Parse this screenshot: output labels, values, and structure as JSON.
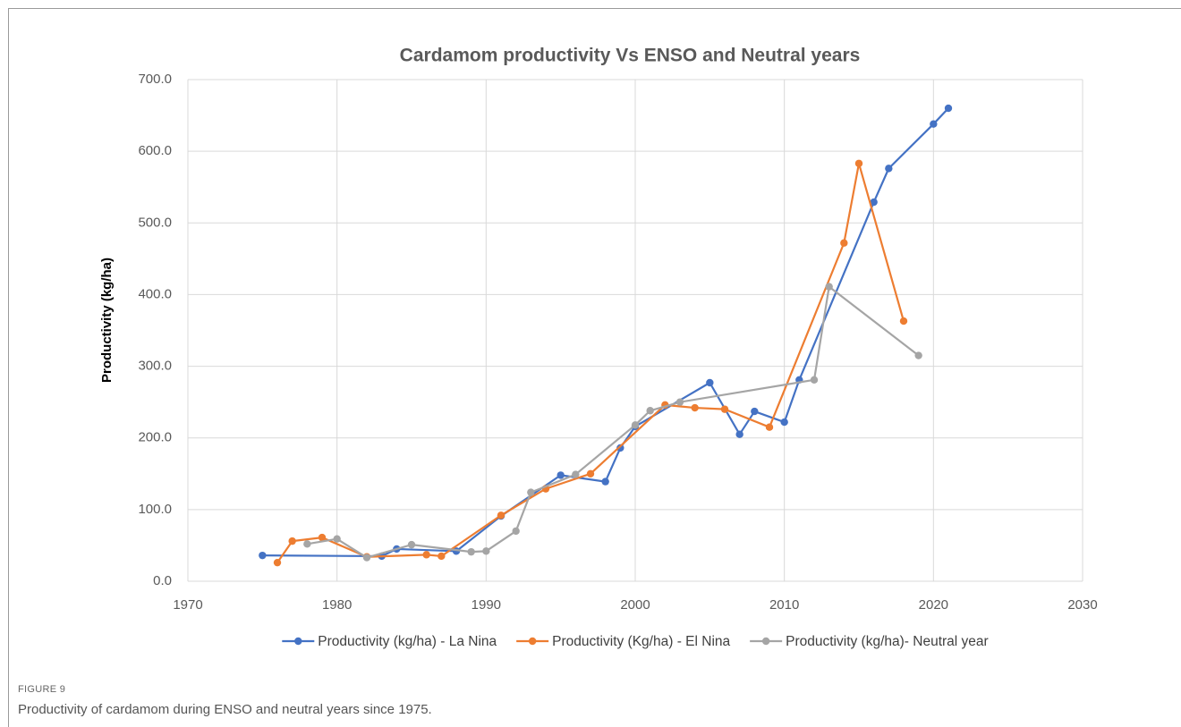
{
  "chart_data": {
    "type": "line",
    "title": "Cardamom productivity Vs ENSO and Neutral years",
    "y_label": "Productivity (kg/ha)",
    "xlim": [
      1970,
      2030
    ],
    "xticks": [
      1970,
      1980,
      1990,
      2000,
      2010,
      2020,
      2030
    ],
    "ylim": [
      0,
      700
    ],
    "yticks": [
      {
        "value": 0,
        "label": "0.0"
      },
      {
        "value": 100,
        "label": "100.0"
      },
      {
        "value": 200,
        "label": "200.0"
      },
      {
        "value": 300,
        "label": "300.0"
      },
      {
        "value": 400,
        "label": "400.0"
      },
      {
        "value": 500,
        "label": "500.0"
      },
      {
        "value": 600,
        "label": "600.0"
      },
      {
        "value": 700,
        "label": "700.0"
      }
    ],
    "grid": true,
    "legend": "bottom",
    "series": [
      {
        "name": "Productivity (kg/ha) - La Nina",
        "color": "#4472c4",
        "x": [
          1975,
          1983,
          1984,
          1988,
          1991,
          1995,
          1998,
          1999,
          2000,
          2005,
          2007,
          2008,
          2010,
          2011,
          2016,
          2017,
          2020,
          2021
        ],
        "values": [
          36,
          35,
          45,
          42,
          91,
          148,
          139,
          186,
          216,
          277,
          205,
          237,
          222,
          281,
          529,
          576,
          638,
          660
        ]
      },
      {
        "name": "Productivity (Kg/ha) - El Nina",
        "color": "#ed7d31",
        "x": [
          1976,
          1977,
          1979,
          1982,
          1986,
          1987,
          1991,
          1994,
          1997,
          2002,
          2004,
          2006,
          2009,
          2014,
          2015,
          2018
        ],
        "values": [
          26,
          56,
          61,
          34,
          37,
          35,
          92,
          129,
          150,
          246,
          242,
          240,
          215,
          472,
          583,
          363
        ]
      },
      {
        "name": "Productivity (kg/ha)- Neutral year",
        "color": "#a5a5a5",
        "x": [
          1978,
          1980,
          1982,
          1985,
          1989,
          1990,
          1992,
          1993,
          1996,
          2000,
          2001,
          2003,
          2012,
          2013,
          2019
        ],
        "values": [
          52,
          59,
          33,
          51,
          41,
          42,
          70,
          124,
          149,
          218,
          238,
          250,
          281,
          411,
          315
        ]
      }
    ]
  },
  "figure": {
    "label": "FIGURE 9",
    "caption": "Productivity of cardamom during ENSO and neutral years since 1975."
  }
}
